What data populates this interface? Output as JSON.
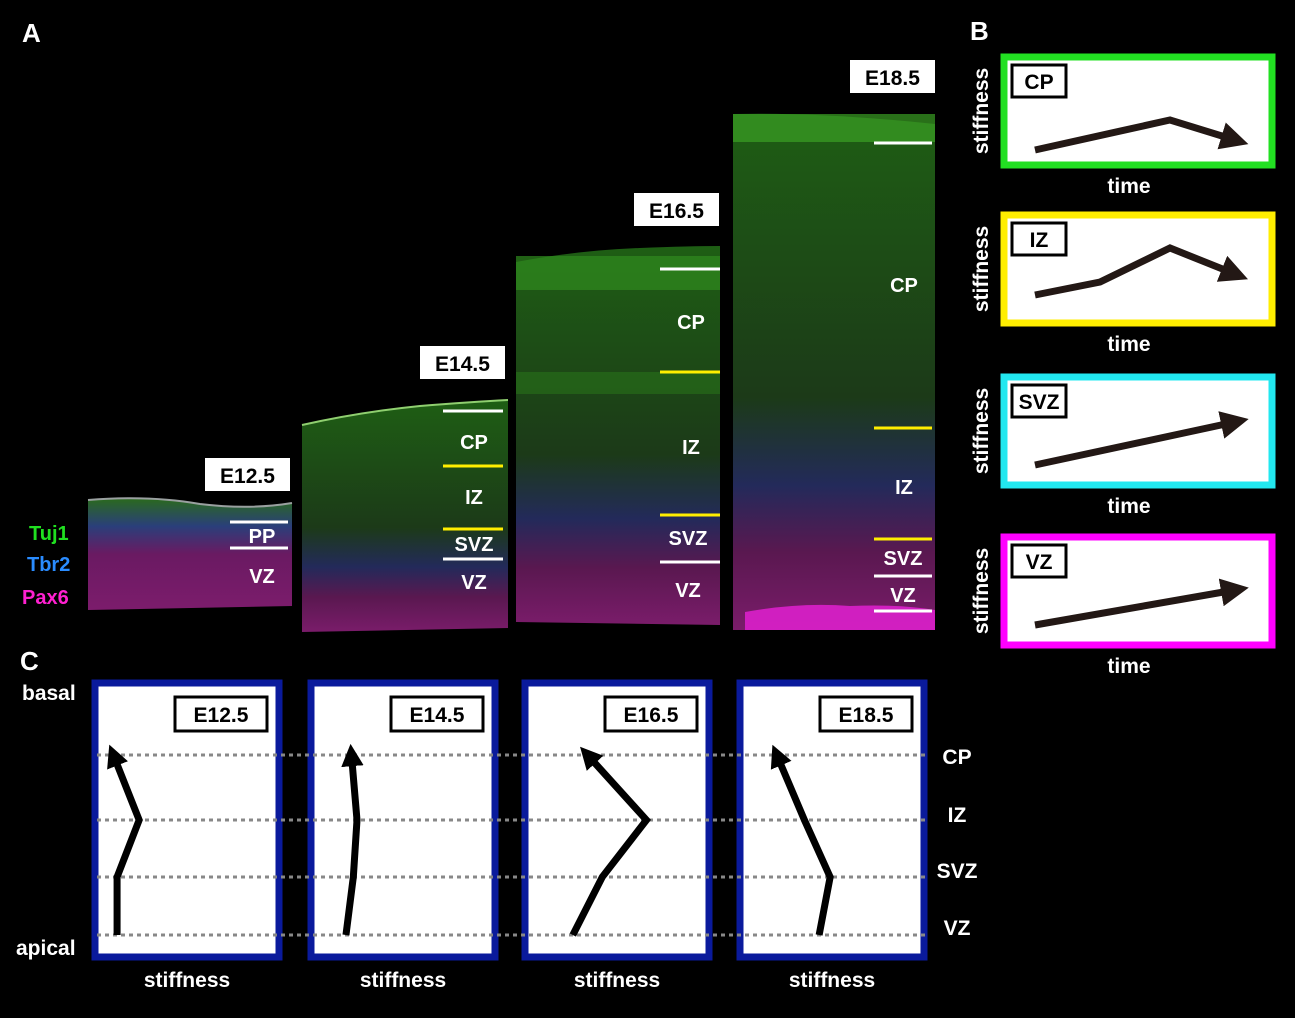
{
  "panel_labels": {
    "a": "A",
    "b": "B",
    "c": "C"
  },
  "legend": {
    "tuj1": "Tuj1",
    "tbr2": "Tbr2",
    "pax6": "Pax6",
    "tuj1_color": "#20e020",
    "tbr2_color": "#2a8cff",
    "pax6_color": "#ff20d0"
  },
  "sections": [
    {
      "stage": "E12.5",
      "zones": [
        "PP",
        "VZ"
      ]
    },
    {
      "stage": "E14.5",
      "zones": [
        "CP",
        "IZ",
        "SVZ",
        "VZ"
      ]
    },
    {
      "stage": "E16.5",
      "zones": [
        "CP",
        "IZ",
        "SVZ",
        "VZ"
      ]
    },
    {
      "stage": "E18.5",
      "zones": [
        "CP",
        "IZ",
        "SVZ",
        "VZ"
      ]
    }
  ],
  "panel_b": {
    "ylabel": "stiffness",
    "xlabel": "time",
    "boxes": [
      {
        "zone": "CP",
        "border_color": "#22e022",
        "trend": "rise then slight fall"
      },
      {
        "zone": "IZ",
        "border_color": "#ffee00",
        "trend": "rise then fall"
      },
      {
        "zone": "SVZ",
        "border_color": "#22e8f0",
        "trend": "steady rise"
      },
      {
        "zone": "VZ",
        "border_color": "#ff00ff",
        "trend": "steady rise"
      }
    ]
  },
  "panel_c": {
    "basal_label": "basal",
    "apical_label": "apical",
    "xlabel": "stiffness",
    "frame_color": "#0a1a9c",
    "levels": [
      "CP",
      "IZ",
      "SVZ",
      "VZ"
    ],
    "profiles": [
      {
        "stage": "E12.5",
        "stiffness": {
          "VZ": 0.12,
          "SVZ": 0.12,
          "IZ": 0.24,
          "CP": 0.1
        }
      },
      {
        "stage": "E14.5",
        "stiffness": {
          "VZ": 0.19,
          "SVZ": 0.23,
          "IZ": 0.25,
          "CP": 0.22
        }
      },
      {
        "stage": "E16.5",
        "stiffness": {
          "VZ": 0.26,
          "SVZ": 0.42,
          "IZ": 0.66,
          "CP": 0.34
        }
      },
      {
        "stage": "E18.5",
        "stiffness": {
          "VZ": 0.43,
          "SVZ": 0.49,
          "IZ": 0.35,
          "CP": 0.2
        }
      }
    ]
  }
}
